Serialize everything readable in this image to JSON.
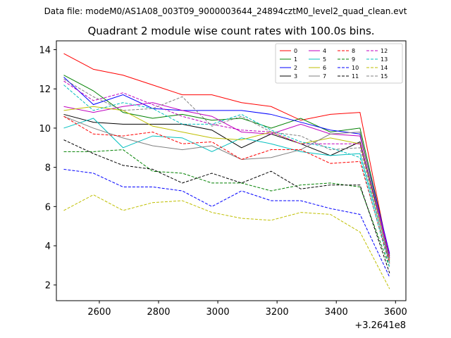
{
  "chart_data": {
    "type": "line",
    "suptitle": "Data file: modeM0/AS1A08_003T09_9000003644_24894cztM0_level2_quad_clean.evt",
    "title": "Quadrant 2 module wise count rates with 100.0s bins.",
    "xlabel": "",
    "ylabel": "",
    "x_offset_label": "+3.2641e8",
    "xlim": [
      2455,
      3635
    ],
    "ylim": [
      1.2,
      14.45
    ],
    "x_ticks": [
      2600,
      2800,
      3000,
      3200,
      3400,
      3600
    ],
    "y_ticks": [
      2,
      4,
      6,
      8,
      10,
      12,
      14
    ],
    "x": [
      2480,
      2580,
      2680,
      2780,
      2880,
      2980,
      3080,
      3180,
      3280,
      3380,
      3480,
      3580
    ],
    "legend": {
      "placement": "top-right",
      "columns": 4
    },
    "series": [
      {
        "name": "0",
        "color": "#ff0000",
        "style": "solid",
        "values": [
          13.8,
          13.0,
          12.7,
          12.2,
          11.7,
          11.7,
          11.3,
          11.1,
          10.4,
          10.7,
          10.8,
          3.3
        ]
      },
      {
        "name": "1",
        "color": "#008000",
        "style": "solid",
        "values": [
          12.7,
          11.9,
          10.8,
          10.5,
          10.7,
          10.4,
          10.5,
          10.0,
          10.5,
          9.8,
          10.0,
          3.5
        ]
      },
      {
        "name": "2",
        "color": "#0000ff",
        "style": "solid",
        "values": [
          12.6,
          11.2,
          11.7,
          11.0,
          10.9,
          10.9,
          10.9,
          10.7,
          10.3,
          9.9,
          9.7,
          3.6
        ]
      },
      {
        "name": "3",
        "color": "#000000",
        "style": "solid",
        "values": [
          10.7,
          10.3,
          10.2,
          10.2,
          10.2,
          9.9,
          9.0,
          9.7,
          9.2,
          8.6,
          9.3,
          3.4
        ]
      },
      {
        "name": "4",
        "color": "#bf00bf",
        "style": "solid",
        "values": [
          11.1,
          10.8,
          11.1,
          11.3,
          10.9,
          10.6,
          9.8,
          9.7,
          10.2,
          9.7,
          9.6,
          3.5
        ]
      },
      {
        "name": "5",
        "color": "#00bfbf",
        "style": "solid",
        "values": [
          10.0,
          10.5,
          9.0,
          9.6,
          9.5,
          8.8,
          9.5,
          9.2,
          8.8,
          8.6,
          8.7,
          3.2
        ]
      },
      {
        "name": "6",
        "color": "#bfbf00",
        "style": "solid",
        "values": [
          10.9,
          11.1,
          10.9,
          10.1,
          9.8,
          9.5,
          9.4,
          9.8,
          9.2,
          9.5,
          9.2,
          3.3
        ]
      },
      {
        "name": "7",
        "color": "#808080",
        "style": "solid",
        "values": [
          10.6,
          10.0,
          9.5,
          9.1,
          8.9,
          9.1,
          8.4,
          8.5,
          8.9,
          9.7,
          9.8,
          3.2
        ]
      },
      {
        "name": "8",
        "color": "#ff0000",
        "style": "dashed",
        "values": [
          10.6,
          9.7,
          9.6,
          9.8,
          9.2,
          9.3,
          8.4,
          8.9,
          8.9,
          8.2,
          8.3,
          3.1
        ]
      },
      {
        "name": "9",
        "color": "#008000",
        "style": "dashed",
        "values": [
          8.8,
          8.8,
          8.9,
          7.8,
          7.7,
          7.2,
          7.2,
          6.8,
          7.1,
          7.2,
          7.0,
          2.9
        ]
      },
      {
        "name": "10",
        "color": "#0000ff",
        "style": "dashed",
        "values": [
          7.9,
          7.7,
          7.0,
          7.0,
          6.8,
          6.0,
          6.8,
          6.3,
          6.3,
          5.9,
          5.6,
          2.4
        ]
      },
      {
        "name": "11",
        "color": "#000000",
        "style": "dashed",
        "values": [
          9.4,
          8.7,
          8.1,
          7.9,
          7.2,
          7.7,
          7.2,
          7.8,
          6.9,
          7.1,
          7.1,
          2.6
        ]
      },
      {
        "name": "12",
        "color": "#bf00bf",
        "style": "dashed",
        "values": [
          12.4,
          11.4,
          11.8,
          11.2,
          10.6,
          10.2,
          9.9,
          9.8,
          9.2,
          9.2,
          9.2,
          3.4
        ]
      },
      {
        "name": "13",
        "color": "#00bfbf",
        "style": "dashed",
        "values": [
          12.2,
          10.9,
          11.3,
          11.0,
          10.2,
          10.2,
          10.7,
          9.9,
          9.3,
          9.0,
          8.5,
          2.9
        ]
      },
      {
        "name": "14",
        "color": "#bfbf00",
        "style": "dashed",
        "values": [
          5.8,
          6.6,
          5.8,
          6.2,
          6.3,
          5.7,
          5.4,
          5.3,
          5.7,
          5.6,
          4.7,
          1.8
        ]
      },
      {
        "name": "15",
        "color": "#808080",
        "style": "dashed",
        "values": [
          12.5,
          11.6,
          10.9,
          11.0,
          11.6,
          10.1,
          10.6,
          9.8,
          9.6,
          8.9,
          9.0,
          3.1
        ]
      }
    ]
  }
}
